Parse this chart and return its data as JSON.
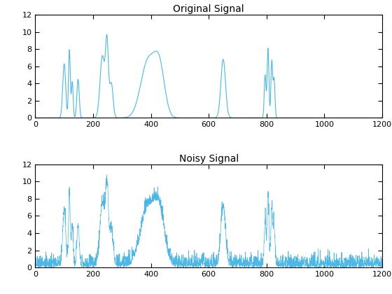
{
  "title_top": "Original Signal",
  "title_bottom": "Noisy Signal",
  "xlim": [
    0,
    1200
  ],
  "ylim": [
    0,
    12
  ],
  "yticks": [
    0,
    2,
    4,
    6,
    8,
    10,
    12
  ],
  "xticks": [
    0,
    200,
    400,
    600,
    800,
    1000,
    1200
  ],
  "line_color": "#4db8e8",
  "noise_seed": 42,
  "noise_level": 0.7,
  "figsize": [
    5.6,
    4.2
  ],
  "dpi": 100,
  "peaks": [
    {
      "mu": 100,
      "sigma": 5,
      "amp": 6.3
    },
    {
      "mu": 118,
      "sigma": 3,
      "amp": 7.9
    },
    {
      "mu": 128,
      "sigma": 3,
      "amp": 4.2
    },
    {
      "mu": 148,
      "sigma": 4,
      "amp": 4.5
    },
    {
      "mu": 232,
      "sigma": 8,
      "amp": 7.2
    },
    {
      "mu": 248,
      "sigma": 5,
      "amp": 8.5
    },
    {
      "mu": 263,
      "sigma": 6,
      "amp": 4.0
    },
    {
      "mu": 390,
      "sigma": 25,
      "amp": 6.6
    },
    {
      "mu": 430,
      "sigma": 18,
      "amp": 5.3
    },
    {
      "mu": 650,
      "sigma": 8,
      "amp": 6.8
    },
    {
      "mu": 795,
      "sigma": 3,
      "amp": 5.0
    },
    {
      "mu": 805,
      "sigma": 3,
      "amp": 8.1
    },
    {
      "mu": 818,
      "sigma": 3,
      "amp": 6.6
    },
    {
      "mu": 826,
      "sigma": 3,
      "amp": 4.5
    }
  ]
}
